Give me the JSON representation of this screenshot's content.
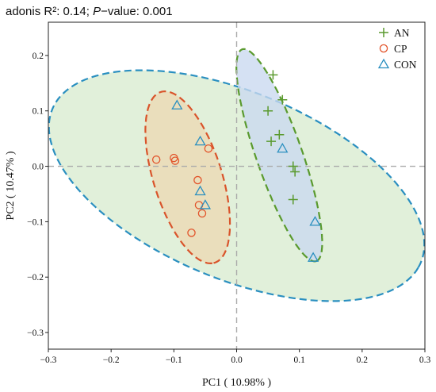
{
  "title": {
    "prefix": "adonis R²: 0.14; ",
    "p_italic": "P",
    "suffix": "−value: 0.001"
  },
  "chart_data": {
    "type": "scatter",
    "xlabel": "PC1 ( 10.98% )",
    "ylabel": "PC2 ( 10.47% )",
    "xlim": [
      -0.3,
      0.3
    ],
    "ylim": [
      -0.33,
      0.26
    ],
    "xticks": [
      -0.3,
      -0.2,
      -0.1,
      0.0,
      0.1,
      0.2,
      0.3
    ],
    "xtick_labels": [
      "−0.3",
      "−0.2",
      "−0.1",
      "0.0",
      "0.1",
      "0.2",
      "0.3"
    ],
    "yticks": [
      0.2,
      0.1,
      0.0,
      -0.1,
      -0.2,
      -0.3
    ],
    "ytick_labels": [
      "0.2",
      "0.1",
      "0.0",
      "−0.1",
      "−0.2",
      "−0.3"
    ],
    "legend_position": "top-right",
    "zero_lines": true,
    "series": [
      {
        "name": "AN",
        "marker": "plus",
        "color": "#5a9a2e",
        "ellipse_stroke": "#5a9a2e",
        "ellipse_fill": "#c9d9f0",
        "points": [
          [
            0.058,
            0.165
          ],
          [
            0.073,
            0.12
          ],
          [
            0.05,
            0.1
          ],
          [
            0.068,
            0.057
          ],
          [
            0.055,
            0.045
          ],
          [
            0.09,
            0.0
          ],
          [
            0.093,
            -0.01
          ],
          [
            0.09,
            -0.06
          ]
        ]
      },
      {
        "name": "CP",
        "marker": "circle",
        "color": "#e2542b",
        "ellipse_stroke": "#d9542b",
        "ellipse_fill": "#ecd9b3",
        "points": [
          [
            -0.128,
            0.012
          ],
          [
            -0.1,
            0.015
          ],
          [
            -0.098,
            0.01
          ],
          [
            -0.045,
            0.032
          ],
          [
            -0.062,
            -0.025
          ],
          [
            -0.06,
            -0.07
          ],
          [
            -0.055,
            -0.085
          ],
          [
            -0.072,
            -0.12
          ]
        ]
      },
      {
        "name": "CON",
        "marker": "triangle",
        "color": "#2a8fc0",
        "ellipse_stroke": "#2a8fc0",
        "ellipse_fill": "#d8ecd0",
        "points": [
          [
            -0.095,
            0.11
          ],
          [
            -0.058,
            0.045
          ],
          [
            -0.058,
            -0.045
          ],
          [
            -0.05,
            -0.07
          ],
          [
            0.073,
            0.032
          ],
          [
            0.125,
            -0.1
          ],
          [
            0.122,
            -0.165
          ]
        ]
      }
    ],
    "ellipses": [
      {
        "group": "CON",
        "cx": 0.0,
        "cy": -0.035,
        "a": 0.325,
        "b": 0.165,
        "angle_deg": -27
      },
      {
        "group": "AN",
        "cx": 0.068,
        "cy": 0.02,
        "a": 0.2,
        "b": 0.037,
        "angle_deg": -73
      },
      {
        "group": "CP",
        "cx": -0.078,
        "cy": -0.02,
        "a": 0.16,
        "b": 0.055,
        "angle_deg": -75
      }
    ]
  }
}
